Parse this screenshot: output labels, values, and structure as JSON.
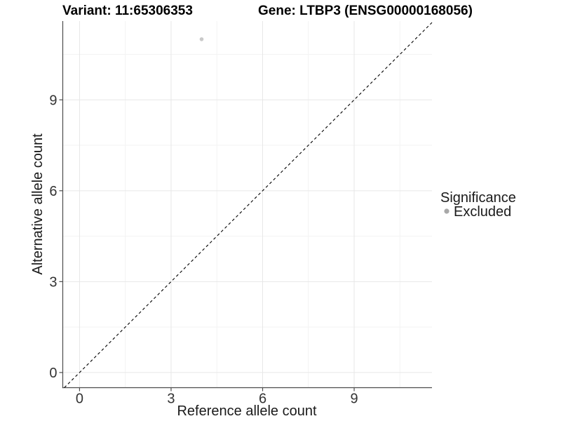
{
  "titles": {
    "variant": "Variant: 11:65306353",
    "gene": "Gene: LTBP3 (ENSG00000168056)"
  },
  "axes": {
    "x_label": "Reference allele count",
    "y_label": "Alternative allele count"
  },
  "legend": {
    "title": "Significance",
    "entries": [
      {
        "label": "Excluded",
        "color": "#a8a8a8"
      }
    ]
  },
  "chart_data": {
    "type": "scatter",
    "title": "Variant: 11:65306353 / Gene: LTBP3 (ENSG00000168056)",
    "xlabel": "Reference allele count",
    "ylabel": "Alternative allele count",
    "xlim": [
      -0.55,
      11.55
    ],
    "ylim": [
      -0.5,
      11.6
    ],
    "x_ticks": [
      0,
      3,
      6,
      9
    ],
    "y_ticks": [
      0,
      3,
      6,
      9
    ],
    "x_minor_ticks": [
      1.5,
      4.5,
      7.5,
      10.5
    ],
    "y_minor_ticks": [
      1.5,
      4.5,
      7.5,
      10.5
    ],
    "grid": true,
    "legend_position": "right",
    "points": [
      {
        "x": 4,
        "y": 11,
        "series": "Excluded"
      }
    ],
    "series": [
      {
        "name": "Excluded",
        "color": "#c9c9c9"
      }
    ],
    "identity_line": {
      "slope": 1,
      "intercept": 0,
      "style": "dashed"
    },
    "style": {
      "grid_major": "#e7e7e7",
      "grid_minor": "#f3f3f3",
      "axis_line": "#4d4d4d",
      "tick_text": "#333333",
      "identity_line": "#000000",
      "point_fill": "#c9c9c9",
      "background": "#ffffff"
    }
  }
}
